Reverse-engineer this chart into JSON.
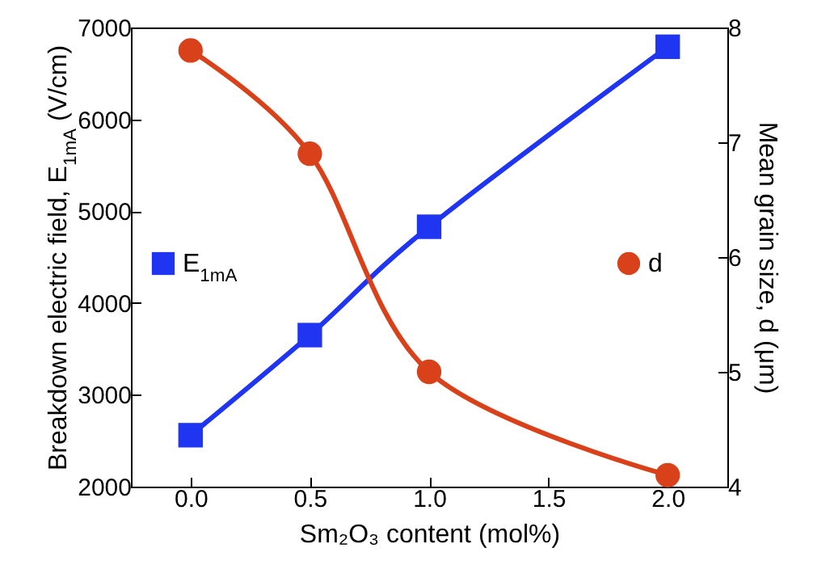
{
  "chart_data": {
    "type": "line",
    "xlabel": "Sm₂O₃ content (mol%)",
    "ylabel": "Breakdown electric field, E$_{1mA}$ (V/cm)",
    "y2label": "Mean grain size, d (μm)",
    "x": [
      0,
      0.5,
      1.0,
      2.0
    ],
    "series": [
      {
        "name": "E$_{1mA}$",
        "color": "#1f35f2",
        "values": [
          2560,
          3650,
          4830,
          6790
        ],
        "marker": "square"
      },
      {
        "name": "d",
        "color": "#d9411a",
        "values": [
          7.8,
          6.9,
          5.0,
          4.1
        ],
        "axis": "y2",
        "marker": "circle"
      }
    ],
    "xlim": [
      -0.25,
      2.25
    ],
    "xticks": [
      {
        "value": 0,
        "label": "0.0"
      },
      {
        "value": 0.5,
        "label": "0.5"
      },
      {
        "value": 1,
        "label": "1.0"
      },
      {
        "value": 1.5,
        "label": "1.5"
      },
      {
        "value": 2,
        "label": "2.0"
      }
    ],
    "ylim": [
      2000,
      7000
    ],
    "yticks": [
      2000,
      3000,
      4000,
      5000,
      6000,
      7000
    ],
    "y2lim": [
      4,
      8
    ],
    "y2ticks": [
      4,
      5,
      6,
      7,
      8
    ],
    "legend": "center",
    "line_style": "solid"
  }
}
